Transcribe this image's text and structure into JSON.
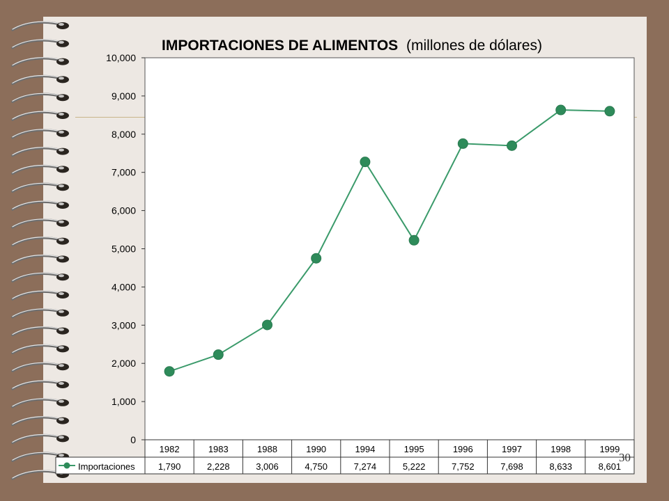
{
  "colors": {
    "background": "#8c6e5a",
    "paper": "#ede8e3",
    "series": "#3a9a6a",
    "series_marker": "#2e8b5a"
  },
  "slide": {
    "page_number": "30"
  },
  "chart_data": {
    "type": "line",
    "title_main": "IMPORTACIONES DE ALIMENTOS",
    "title_sub": "(millones de dólares)",
    "categories": [
      "1982",
      "1983",
      "1988",
      "1990",
      "1994",
      "1995",
      "1996",
      "1997",
      "1998",
      "1999"
    ],
    "series": [
      {
        "name": "Importaciones",
        "values": [
          1790,
          2228,
          3006,
          4750,
          7274,
          5222,
          7752,
          7698,
          8633,
          8601
        ],
        "value_labels": [
          "1,790",
          "2,228",
          "3,006",
          "4,750",
          "7,274",
          "5,222",
          "7,752",
          "7,698",
          "8,633",
          "8,601"
        ]
      }
    ],
    "ylim": [
      0,
      10000
    ],
    "y_ticks": [
      {
        "value": 0,
        "label": "0"
      },
      {
        "value": 1000,
        "label": "1,000"
      },
      {
        "value": 2000,
        "label": "2,000"
      },
      {
        "value": 3000,
        "label": "3,000"
      },
      {
        "value": 4000,
        "label": "4,000"
      },
      {
        "value": 5000,
        "label": "5,000"
      },
      {
        "value": 6000,
        "label": "6,000"
      },
      {
        "value": 7000,
        "label": "7,000"
      },
      {
        "value": 8000,
        "label": "8,000"
      },
      {
        "value": 9000,
        "label": "9,000"
      },
      {
        "value": 10000,
        "label": "10,000"
      }
    ],
    "grid": false,
    "legend": "data-table-bottom"
  }
}
